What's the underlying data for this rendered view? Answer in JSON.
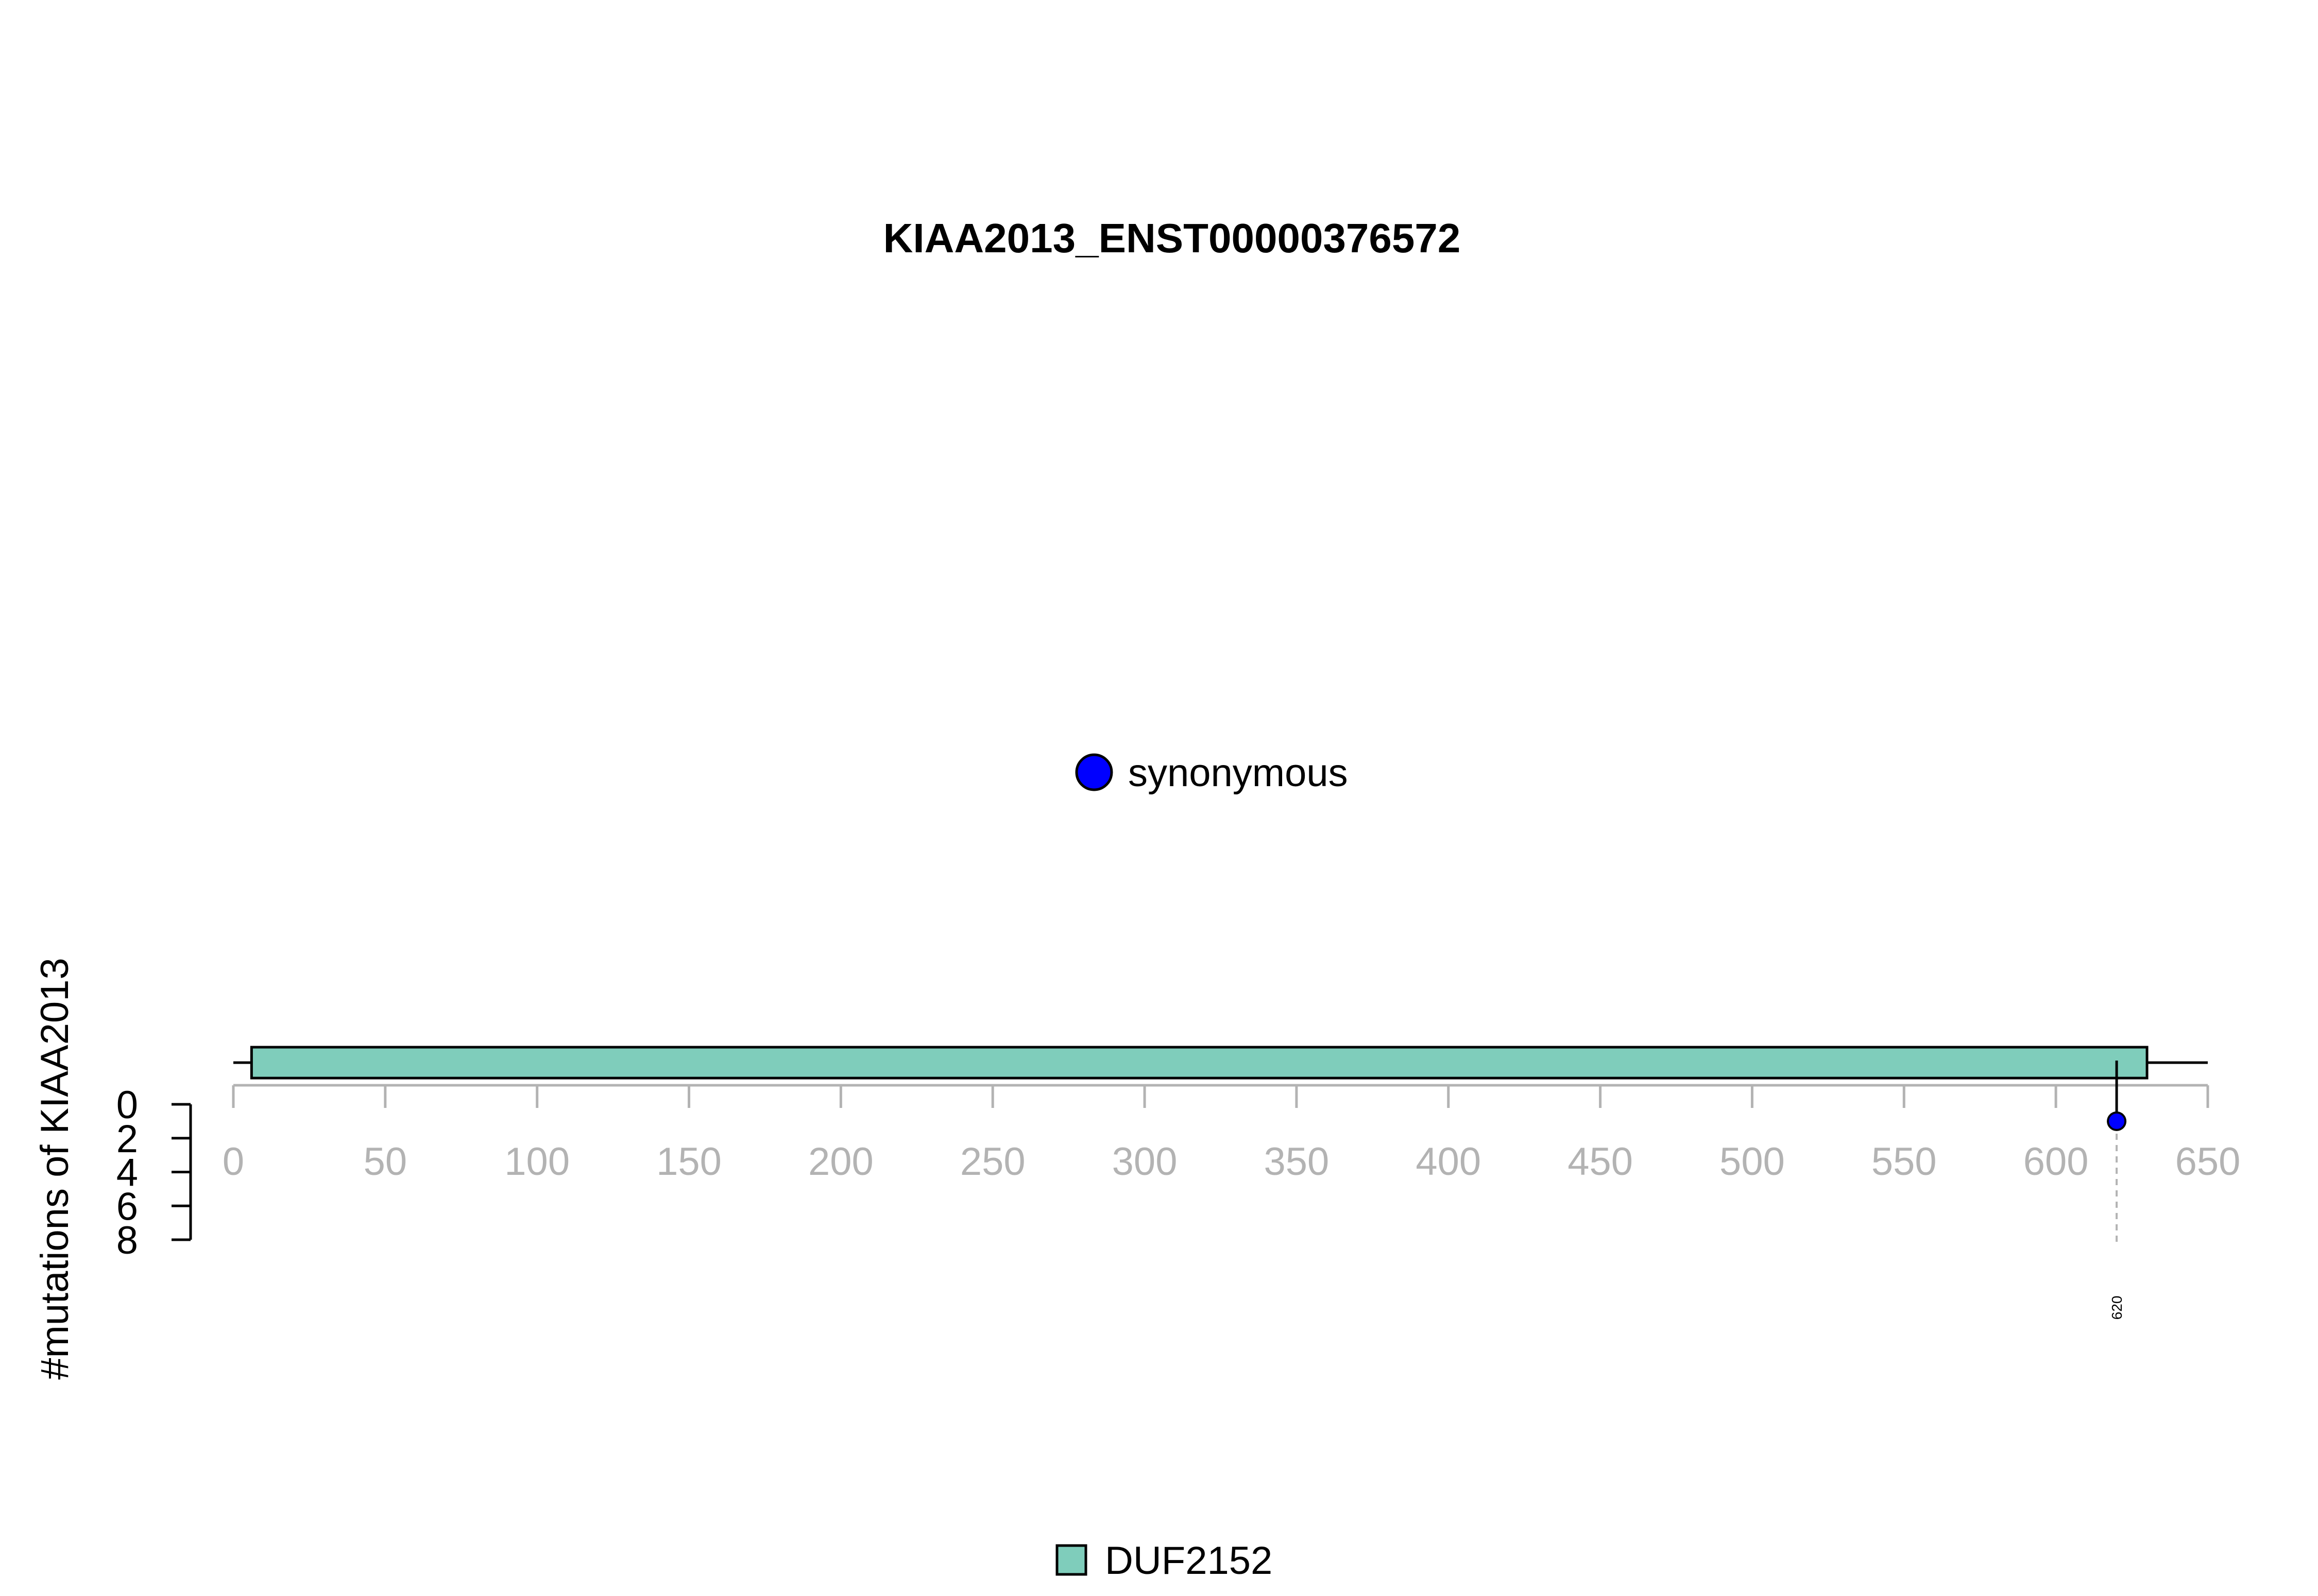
{
  "chart_data": {
    "type": "lollipop",
    "title": "KIAA2013_ENST00000376572",
    "ylabel": "#mutations of KIAA2013",
    "xlim": [
      0,
      650
    ],
    "x_ticks": [
      "0",
      "50",
      "100",
      "150",
      "200",
      "250",
      "300",
      "350",
      "400",
      "450",
      "500",
      "550",
      "600",
      "650"
    ],
    "ylim": [
      0,
      8
    ],
    "y_ticks": [
      "0",
      "2",
      "4",
      "6",
      "8"
    ],
    "protein_length": 650,
    "domains": [
      {
        "name": "DUF2152",
        "start": 6,
        "end": 630,
        "color": "#7fcdbb"
      }
    ],
    "mutations": [
      {
        "position": 620,
        "count": 1,
        "type": "synonymous",
        "label": "620",
        "color": "#0000ff"
      }
    ],
    "mutation_legend": [
      {
        "label": "synonymous",
        "color": "#0000ff"
      }
    ],
    "domain_legend": [
      {
        "label": "DUF2152",
        "color": "#7fcdbb"
      }
    ]
  }
}
